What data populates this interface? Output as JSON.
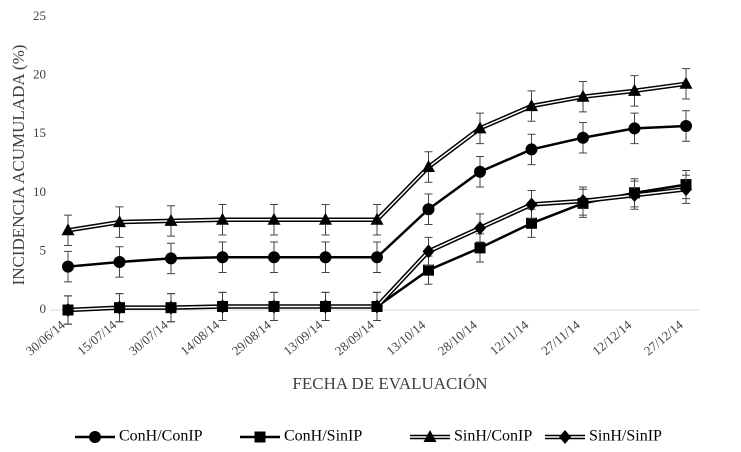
{
  "chart_data": {
    "type": "line",
    "ylabel": "INCIDENCIA ACUMULADA (%)",
    "xlabel": "FECHA DE EVALUACIÓN",
    "categories": [
      "30/06/14",
      "15/07/14",
      "30/07/14",
      "14/08/14",
      "29/08/14",
      "13/09/14",
      "28/09/14",
      "13/10/14",
      "28/10/14",
      "12/11/14",
      "27/11/14",
      "12/12/14",
      "27/12/14"
    ],
    "ylim": [
      0,
      25
    ],
    "yticks": [
      0,
      5,
      10,
      15,
      20,
      25
    ],
    "legend": "bottom",
    "series": [
      {
        "name": "ConH/ConIP",
        "color": "#000000",
        "marker": "circle",
        "line": "single",
        "values": [
          3.7,
          4.1,
          4.4,
          4.5,
          4.5,
          4.5,
          4.5,
          8.6,
          11.8,
          13.7,
          14.7,
          15.5,
          15.7
        ],
        "errors": [
          1.3,
          1.3,
          1.3,
          1.3,
          1.3,
          1.3,
          1.3,
          1.3,
          1.3,
          1.3,
          1.3,
          1.3,
          1.3
        ]
      },
      {
        "name": "ConH/SinIP",
        "color": "#000000",
        "marker": "square",
        "line": "single",
        "values": [
          0.0,
          0.2,
          0.2,
          0.3,
          0.3,
          0.3,
          0.3,
          3.4,
          5.3,
          7.4,
          9.1,
          10.0,
          10.7
        ],
        "errors": [
          1.2,
          1.2,
          1.2,
          1.2,
          1.2,
          1.2,
          1.2,
          1.2,
          1.2,
          1.2,
          1.2,
          1.2,
          1.2
        ]
      },
      {
        "name": "SinH/ConIP",
        "color": "#000000",
        "marker": "triangle",
        "line": "double",
        "values": [
          6.8,
          7.5,
          7.6,
          7.7,
          7.7,
          7.7,
          7.7,
          12.2,
          15.5,
          17.4,
          18.2,
          18.7,
          19.3
        ],
        "errors": [
          1.3,
          1.3,
          1.3,
          1.3,
          1.3,
          1.3,
          1.3,
          1.3,
          1.3,
          1.3,
          1.3,
          1.3,
          1.3
        ]
      },
      {
        "name": "SinH/SinIP",
        "color": "#000000",
        "marker": "diamond",
        "line": "double",
        "values": [
          0.0,
          0.2,
          0.2,
          0.3,
          0.3,
          0.3,
          0.3,
          5.0,
          7.0,
          9.0,
          9.3,
          9.8,
          10.3
        ],
        "errors": [
          1.2,
          1.2,
          1.2,
          1.2,
          1.2,
          1.2,
          1.2,
          1.2,
          1.2,
          1.2,
          1.2,
          1.2,
          1.2
        ]
      }
    ]
  }
}
